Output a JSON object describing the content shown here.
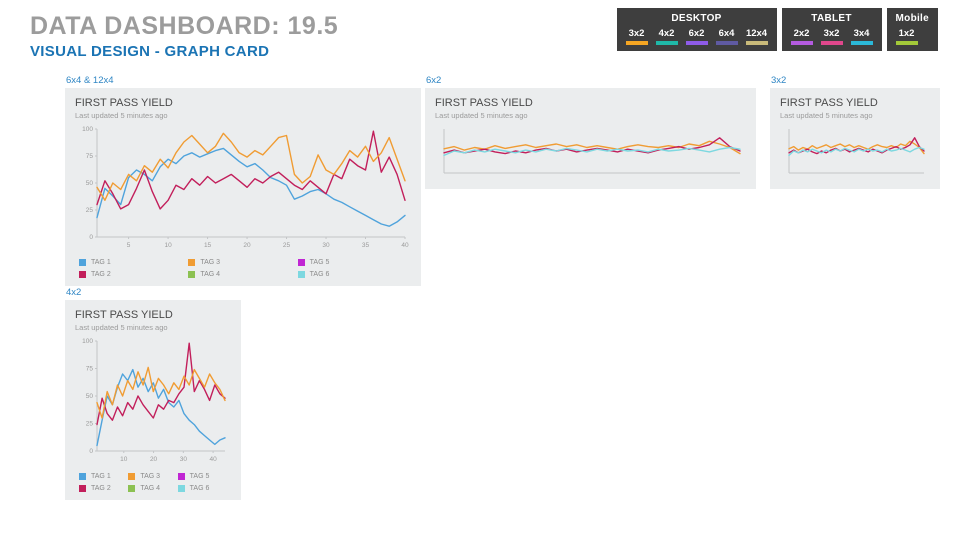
{
  "page": {
    "title": "DATA DASHBOARD: 19.5",
    "subtitle": "VISUAL DESIGN - GRAPH CARD"
  },
  "spec_bar": {
    "groups": [
      {
        "name": "DESKTOP",
        "items": [
          {
            "label": "3x2",
            "color": "#F5A623"
          },
          {
            "label": "4x2",
            "color": "#1FB8A8"
          },
          {
            "label": "6x2",
            "color": "#8E5BE8"
          },
          {
            "label": "6x4",
            "color": "#5F5AA2"
          },
          {
            "label": "12x4",
            "color": "#C9BA7A"
          }
        ]
      },
      {
        "name": "TABLET",
        "items": [
          {
            "label": "2x2",
            "color": "#B45BE0"
          },
          {
            "label": "3x2",
            "color": "#E0478C"
          },
          {
            "label": "3x4",
            "color": "#2BB8D8"
          }
        ]
      },
      {
        "name": "Mobile",
        "items": [
          {
            "label": "1x2",
            "color": "#A3C939"
          }
        ]
      }
    ]
  },
  "cards": [
    {
      "section_label": "6x4 & 12x4",
      "title": "FIRST PASS YIELD",
      "subtitle": "Last updated 5 minutes ago",
      "legend": [
        {
          "label": "TAG 1",
          "color": "#4FA3DC"
        },
        {
          "label": "TAG 2",
          "color": "#C21F5B"
        },
        {
          "label": "TAG 3",
          "color": "#F09C33"
        },
        {
          "label": "TAG 4",
          "color": "#8CC152"
        },
        {
          "label": "TAG 5",
          "color": "#C026D3"
        },
        {
          "label": "TAG 6",
          "color": "#7DD8E0"
        }
      ],
      "chart_data": {
        "type": "line",
        "title": "FIRST PASS YIELD",
        "ylim": [
          0,
          100
        ],
        "y_ticks": [
          0,
          25,
          50,
          75,
          100
        ],
        "x_min": 1,
        "x_max": 40,
        "x_ticks": [
          5,
          10,
          15,
          20,
          25,
          30,
          35,
          40
        ],
        "show_axis_labels": true,
        "series": [
          {
            "name": "TAG 1",
            "color": "#4FA3DC",
            "values": [
              18,
              45,
              38,
              30,
              55,
              62,
              58,
              52,
              65,
              72,
              68,
              75,
              78,
              74,
              77,
              80,
              82,
              76,
              70,
              65,
              68,
              62,
              55,
              52,
              48,
              35,
              38,
              42,
              44,
              40,
              35,
              32,
              28,
              24,
              20,
              16,
              12,
              10,
              14,
              20
            ]
          },
          {
            "name": "TAG 2",
            "color": "#C21F5B",
            "values": [
              30,
              52,
              40,
              26,
              30,
              45,
              62,
              42,
              26,
              34,
              48,
              44,
              54,
              48,
              56,
              50,
              54,
              58,
              52,
              46,
              54,
              50,
              56,
              60,
              54,
              48,
              44,
              52,
              46,
              40,
              58,
              54,
              72,
              66,
              62,
              98,
              60,
              74,
              58,
              34
            ]
          },
          {
            "name": "TAG 3",
            "color": "#F09C33",
            "values": [
              46,
              34,
              50,
              44,
              58,
              52,
              66,
              60,
              72,
              64,
              78,
              88,
              94,
              86,
              78,
              84,
              96,
              88,
              78,
              74,
              80,
              76,
              84,
              92,
              94,
              58,
              50,
              56,
              76,
              62,
              58,
              68,
              80,
              74,
              84,
              70,
              78,
              92,
              72,
              52
            ]
          }
        ]
      }
    },
    {
      "section_label": "6x2",
      "title": "FIRST PASS YIELD",
      "subtitle": "Last updated 5 minutes ago",
      "legend": null,
      "chart_data": {
        "type": "line",
        "title": "FIRST PASS YIELD",
        "ylim": [
          0,
          100
        ],
        "y_ticks": [],
        "x_min": 1,
        "x_max": 30,
        "x_ticks": [],
        "show_axis_labels": false,
        "series": [
          {
            "name": "TAG 3",
            "color": "#F09C33",
            "values": [
              55,
              60,
              52,
              58,
              54,
              62,
              56,
              60,
              64,
              58,
              62,
              66,
              60,
              64,
              58,
              62,
              58,
              54,
              60,
              64,
              60,
              58,
              62,
              58,
              66,
              62,
              72,
              66,
              58,
              44
            ]
          },
          {
            "name": "TAG 2",
            "color": "#C21F5B",
            "values": [
              46,
              52,
              46,
              50,
              54,
              48,
              44,
              50,
              46,
              52,
              56,
              50,
              54,
              48,
              52,
              56,
              52,
              48,
              54,
              50,
              46,
              52,
              56,
              60,
              54,
              58,
              64,
              80,
              60,
              50
            ]
          },
          {
            "name": "TAG 6",
            "color": "#7DD8E0",
            "values": [
              40,
              50,
              46,
              52,
              48,
              54,
              50,
              46,
              52,
              48,
              54,
              50,
              56,
              52,
              48,
              54,
              50,
              54,
              50,
              52,
              48,
              54,
              50,
              52,
              56,
              52,
              48,
              54,
              58,
              54
            ]
          }
        ]
      }
    },
    {
      "section_label": "3x2",
      "title": "FIRST PASS YIELD",
      "subtitle": "Last updated 5 minutes ago",
      "legend": null,
      "chart_data": {
        "type": "line",
        "title": "FIRST PASS YIELD",
        "ylim": [
          0,
          100
        ],
        "y_ticks": [],
        "x_min": 1,
        "x_max": 30,
        "x_ticks": [],
        "show_axis_labels": false,
        "series": [
          {
            "name": "TAG 3",
            "color": "#F09C33",
            "values": [
              55,
              60,
              52,
              58,
              54,
              62,
              56,
              60,
              64,
              58,
              62,
              66,
              60,
              64,
              58,
              62,
              58,
              54,
              60,
              64,
              60,
              58,
              62,
              58,
              66,
              62,
              72,
              66,
              58,
              44
            ]
          },
          {
            "name": "TAG 2",
            "color": "#C21F5B",
            "values": [
              46,
              52,
              46,
              50,
              54,
              48,
              44,
              50,
              46,
              52,
              56,
              50,
              54,
              48,
              52,
              56,
              52,
              48,
              54,
              50,
              46,
              52,
              56,
              60,
              54,
              58,
              64,
              80,
              60,
              50
            ]
          },
          {
            "name": "TAG 6",
            "color": "#7DD8E0",
            "values": [
              40,
              50,
              46,
              52,
              48,
              54,
              50,
              46,
              52,
              48,
              54,
              50,
              56,
              52,
              48,
              54,
              50,
              54,
              50,
              52,
              48,
              54,
              50,
              52,
              56,
              52,
              48,
              54,
              58,
              54
            ]
          }
        ]
      }
    },
    {
      "section_label": "4x2",
      "title": "FIRST PASS YIELD",
      "subtitle": "Last updated 5 minutes ago",
      "legend": [
        {
          "label": "TAG 1",
          "color": "#4FA3DC"
        },
        {
          "label": "TAG 2",
          "color": "#C21F5B"
        },
        {
          "label": "TAG 3",
          "color": "#F09C33"
        },
        {
          "label": "TAG 4",
          "color": "#8CC152"
        },
        {
          "label": "TAG 5",
          "color": "#C026D3"
        },
        {
          "label": "TAG 6",
          "color": "#7DD8E0"
        }
      ],
      "chart_data": {
        "type": "line",
        "title": "FIRST PASS YIELD",
        "ylim": [
          0,
          100
        ],
        "y_ticks": [
          0,
          25,
          50,
          75,
          100
        ],
        "x_min": 1,
        "x_max": 44,
        "x_ticks": [
          10,
          20,
          30,
          40
        ],
        "show_axis_labels": true,
        "series": [
          {
            "name": "TAG 1",
            "color": "#4FA3DC",
            "values": [
              5,
              28,
              50,
              42,
              58,
              70,
              64,
              74,
              58,
              66,
              54,
              62,
              48,
              56,
              44,
              40,
              46,
              34,
              28,
              24,
              18,
              14,
              10,
              6,
              10,
              12
            ]
          },
          {
            "name": "TAG 2",
            "color": "#C21F5B",
            "values": [
              24,
              48,
              34,
              28,
              40,
              32,
              44,
              38,
              50,
              42,
              36,
              30,
              42,
              38,
              46,
              44,
              52,
              58,
              98,
              54,
              64,
              56,
              46,
              60,
              52,
              48
            ]
          },
          {
            "name": "TAG 3",
            "color": "#F09C33",
            "values": [
              44,
              30,
              54,
              42,
              60,
              50,
              64,
              56,
              72,
              60,
              76,
              54,
              66,
              60,
              52,
              62,
              56,
              68,
              60,
              74,
              66,
              58,
              70,
              62,
              56,
              46
            ]
          }
        ]
      }
    }
  ]
}
